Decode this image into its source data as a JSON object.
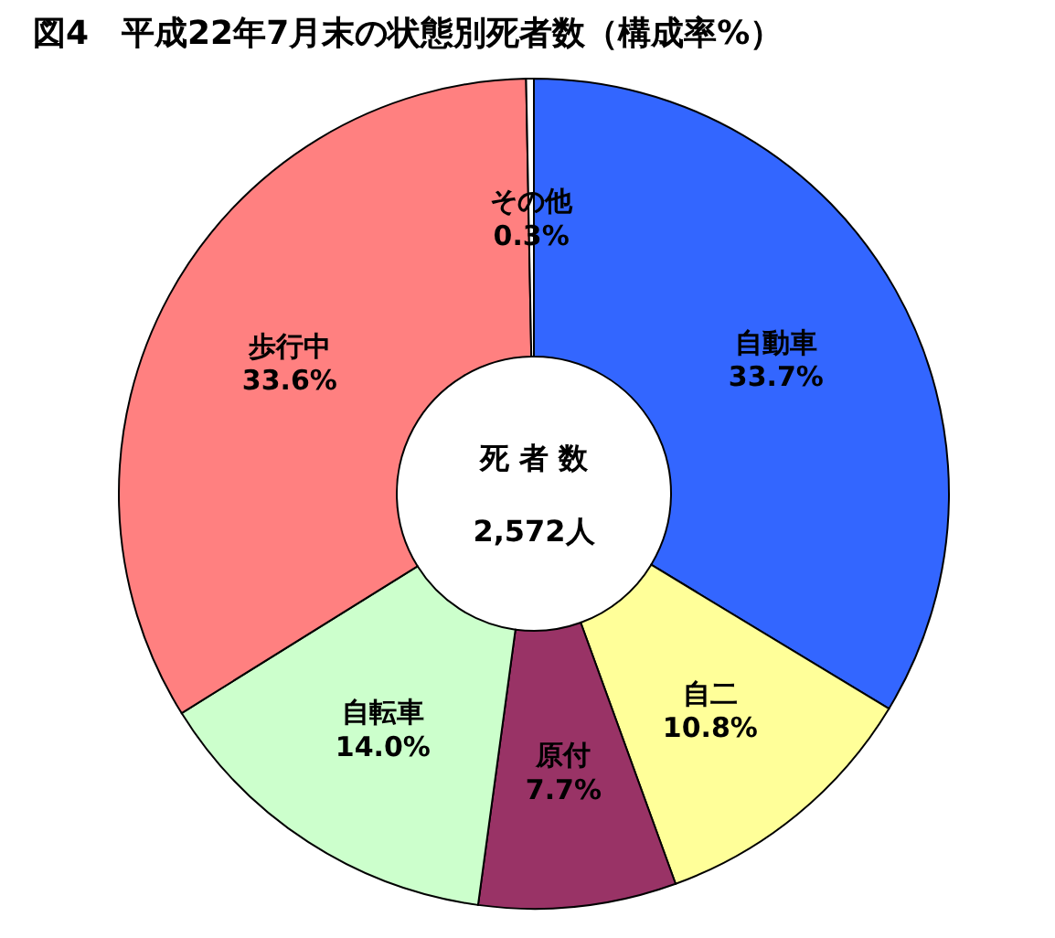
{
  "chart_data": {
    "type": "donut",
    "title": "図4　平成22年7月末の状態別死者数（構成率%）",
    "categories": [
      "自動車",
      "自二",
      "原付",
      "自転車",
      "歩行中",
      "その他"
    ],
    "values": [
      33.7,
      10.8,
      7.7,
      14.0,
      33.6,
      0.3
    ],
    "value_labels": [
      "33.7%",
      "10.8%",
      "7.7%",
      "14.0%",
      "33.6%",
      "0.3%"
    ],
    "colors": [
      "#3366ff",
      "#ffff99",
      "#993366",
      "#ccffcc",
      "#ff8080",
      "#ffffff"
    ],
    "annotations": [
      "死 者 数",
      "2,572人"
    ]
  }
}
